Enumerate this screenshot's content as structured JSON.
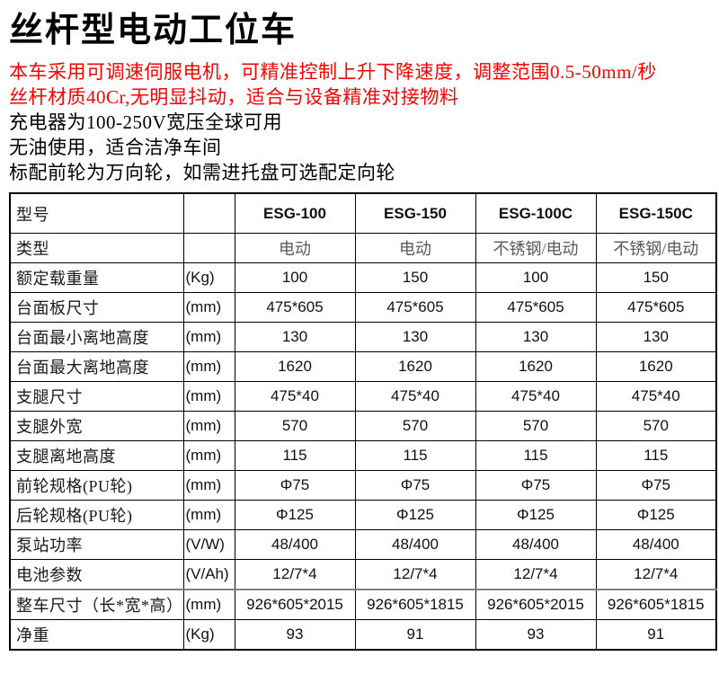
{
  "page": {
    "title": "丝杆型电动工位车",
    "accent_color": "#ff0000",
    "border_color": "#000000",
    "gray_divider_color": "#808080"
  },
  "intro": {
    "lines": [
      {
        "text": "本车采用可调速伺服电机，可精准控制上升下降速度，调整范围0.5-50mm/秒",
        "color": "red"
      },
      {
        "text": "丝杆材质40Cr,无明显抖动，适合与设备精准对接物料",
        "color": "red"
      },
      {
        "text": "充电器为100-250V宽压全球可用",
        "color": "black"
      },
      {
        "text": "无油使用，适合洁净车间",
        "color": "black"
      },
      {
        "text": "标配前轮为万向轮，如需进托盘可选配定向轮",
        "color": "black"
      }
    ]
  },
  "table": {
    "header": {
      "label": "型号",
      "unit": "",
      "models": [
        "ESG-100",
        "ESG-150",
        "ESG-100C",
        "ESG-150C"
      ]
    },
    "rows": [
      {
        "label": "类型",
        "unit": "",
        "values": [
          "电动",
          "电动",
          "不锈钢/电动",
          "不锈钢/电动"
        ]
      },
      {
        "label": "额定载重量",
        "unit": "(Kg)",
        "values": [
          "100",
          "150",
          "100",
          "150"
        ]
      },
      {
        "label": "台面板尺寸",
        "unit": "(mm)",
        "values": [
          "475*605",
          "475*605",
          "475*605",
          "475*605"
        ]
      },
      {
        "label": "台面最小离地高度",
        "unit": "(mm)",
        "values": [
          "130",
          "130",
          "130",
          "130"
        ]
      },
      {
        "label": "台面最大离地高度",
        "unit": "(mm)",
        "values": [
          "1620",
          "1620",
          "1620",
          "1620"
        ]
      },
      {
        "label": "支腿尺寸",
        "unit": "(mm)",
        "values": [
          "475*40",
          "475*40",
          "475*40",
          "475*40"
        ]
      },
      {
        "label": "支腿外宽",
        "unit": "(mm)",
        "values": [
          "570",
          "570",
          "570",
          "570"
        ]
      },
      {
        "label": "支腿离地高度",
        "unit": "(mm)",
        "values": [
          "115",
          "115",
          "115",
          "115"
        ]
      },
      {
        "label": "前轮规格(PU轮)",
        "unit": "(mm)",
        "values": [
          "Φ75",
          "Φ75",
          "Φ75",
          "Φ75"
        ]
      },
      {
        "label": "后轮规格(PU轮)",
        "unit": "(mm)",
        "values": [
          "Φ125",
          "Φ125",
          "Φ125",
          "Φ125"
        ]
      },
      {
        "label": "泵站功率",
        "unit": "(V/W)",
        "values": [
          "48/400",
          "48/400",
          "48/400",
          "48/400"
        ]
      },
      {
        "label": "电池参数",
        "unit": "(V/Ah)",
        "values": [
          "12/7*4",
          "12/7*4",
          "12/7*4",
          "12/7*4"
        ]
      },
      {
        "label": "整车尺寸（长*宽*高）",
        "unit": "(mm)",
        "values": [
          "926*605*2015",
          "926*605*1815",
          "926*605*2015",
          "926*605*1815"
        ]
      },
      {
        "label": "净重",
        "unit": "(Kg)",
        "values": [
          "93",
          "91",
          "93",
          "91"
        ]
      }
    ]
  }
}
